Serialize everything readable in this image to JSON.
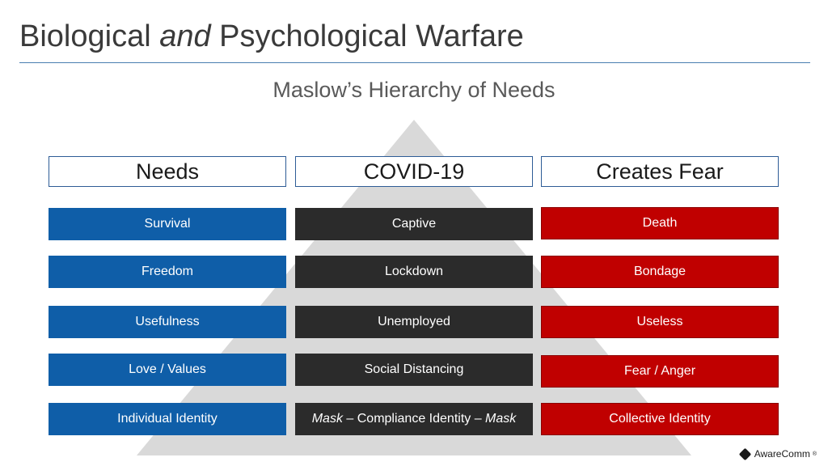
{
  "slide": {
    "title_part1": "Biological ",
    "title_italic": "and",
    "title_part2": " Psychological Warfare",
    "subtitle": "Maslow’s Hierarchy of Needs"
  },
  "columns": {
    "needs": {
      "header": "Needs",
      "items": [
        "Survival",
        "Freedom",
        "Usefulness",
        "Love / Values",
        "Individual Identity"
      ]
    },
    "covid": {
      "header": "COVID-19",
      "items": [
        "Captive",
        "Lockdown",
        "Unemployed",
        "Social Distancing"
      ],
      "last_item": {
        "italic_start": "Mask",
        "middle": " – Compliance Identity – ",
        "italic_end": "Mask"
      }
    },
    "fear": {
      "header": "Creates Fear",
      "items": [
        "Death",
        "Bondage",
        "Useless",
        "Fear / Anger",
        "Collective Identity"
      ]
    }
  },
  "logo": {
    "name": "AwareComm",
    "mark": "®",
    "icon": "awarecomm-logo-icon"
  },
  "colors": {
    "needs": "#0f5ea8",
    "covid": "#2b2b2b",
    "fear": "#c00000",
    "pyramid": "#d9d9d9",
    "header_border": "#2e5c96"
  }
}
